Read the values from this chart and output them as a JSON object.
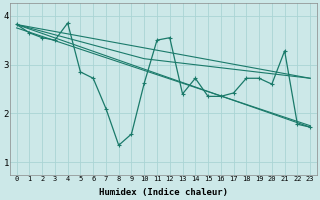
{
  "xlabel": "Humidex (Indice chaleur)",
  "xlim": [
    -0.5,
    23.5
  ],
  "ylim": [
    0.75,
    4.25
  ],
  "xticks": [
    0,
    1,
    2,
    3,
    4,
    5,
    6,
    7,
    8,
    9,
    10,
    11,
    12,
    13,
    14,
    15,
    16,
    17,
    18,
    19,
    20,
    21,
    22,
    23
  ],
  "yticks": [
    1,
    2,
    3,
    4
  ],
  "background_color": "#cce8e8",
  "grid_color": "#aad4d4",
  "line_color": "#1a7a6a",
  "lines": [
    {
      "x": [
        0,
        1,
        2,
        3,
        4,
        5,
        6,
        7,
        8,
        9,
        10,
        11,
        12,
        13,
        14,
        15,
        16,
        17,
        18,
        19,
        20,
        21,
        22,
        23
      ],
      "y": [
        3.82,
        3.65,
        3.55,
        3.5,
        3.85,
        2.85,
        2.72,
        2.1,
        1.35,
        1.58,
        2.62,
        3.5,
        3.55,
        2.4,
        2.72,
        2.35,
        2.35,
        2.42,
        2.72,
        2.72,
        2.6,
        3.28,
        1.78,
        1.72
      ]
    },
    {
      "x": [
        0,
        23
      ],
      "y": [
        3.82,
        1.72
      ]
    },
    {
      "x": [
        0,
        23
      ],
      "y": [
        3.75,
        1.75
      ]
    },
    {
      "x": [
        0,
        10,
        23
      ],
      "y": [
        3.82,
        3.12,
        2.72
      ]
    },
    {
      "x": [
        0,
        23
      ],
      "y": [
        3.82,
        2.72
      ]
    }
  ]
}
